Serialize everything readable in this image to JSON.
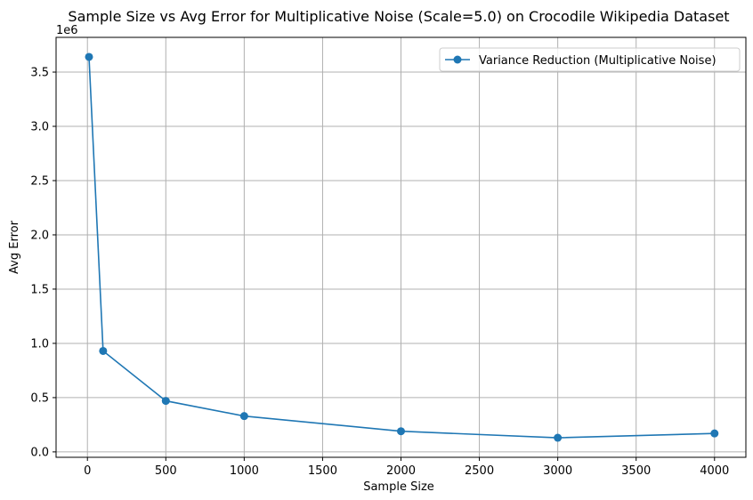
{
  "chart_data": {
    "type": "line",
    "title": "Sample Size vs Avg Error for Multiplicative Noise (Scale=5.0) on Crocodile Wikipedia Dataset",
    "xlabel": "Sample Size",
    "ylabel": "Avg Error",
    "y_offset_text": "1e6",
    "xlim": [
      -200,
      4200
    ],
    "ylim": [
      -0.05,
      3.82
    ],
    "y_scale_factor": 1000000,
    "xticks": [
      0,
      500,
      1000,
      1500,
      2000,
      2500,
      3000,
      3500,
      4000
    ],
    "xtick_labels": [
      "0",
      "500",
      "1000",
      "1500",
      "2000",
      "2500",
      "3000",
      "3500",
      "4000"
    ],
    "yticks": [
      0.0,
      0.5,
      1.0,
      1.5,
      2.0,
      2.5,
      3.0,
      3.5
    ],
    "ytick_labels": [
      "0.0",
      "0.5",
      "1.0",
      "1.5",
      "2.0",
      "2.5",
      "3.0",
      "3.5"
    ],
    "grid": true,
    "legend_position": "top-right",
    "series": [
      {
        "name": "Variance Reduction (Multiplicative Noise)",
        "color": "#1f77b4",
        "marker": "circle",
        "x": [
          10,
          100,
          500,
          1000,
          2000,
          3000,
          4000
        ],
        "y": [
          3.64,
          0.93,
          0.47,
          0.33,
          0.19,
          0.13,
          0.17
        ]
      }
    ]
  }
}
